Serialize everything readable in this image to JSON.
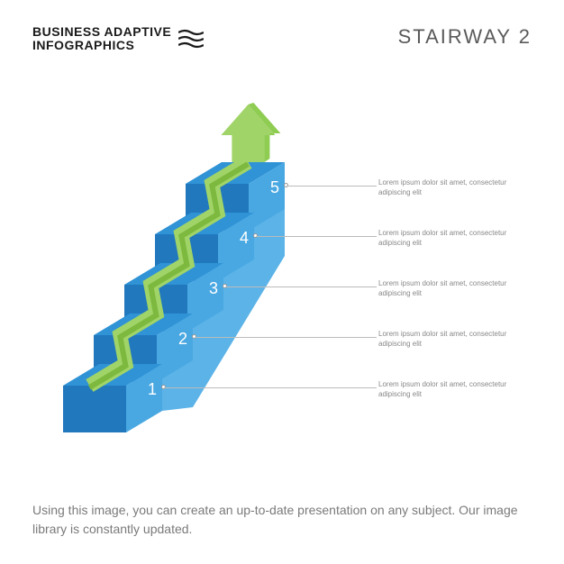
{
  "brand": {
    "line1": "BUSINESS ADAPTIVE",
    "line2": "INFOGRAPHICS"
  },
  "title": "STAIRWAY 2",
  "footer": "Using this image, you can create an up-to-date presentation on any subject. Our image library is constantly updated.",
  "diagram": {
    "type": "infographic",
    "background_color": "#ffffff",
    "step_colors": {
      "top": "#2f93d6",
      "front": "#2178bd",
      "side": "#49a8e2",
      "side_wall": "#5bb3e8",
      "number_color": "#ffffff"
    },
    "arrow_colors": {
      "top": "#a0d468",
      "front": "#7db93e",
      "side": "#8ecc52"
    },
    "steps": [
      {
        "n": "1",
        "text": "Lorem ipsum dolor sit amet, consectetur adipiscing elit"
      },
      {
        "n": "2",
        "text": "Lorem ipsum dolor sit amet, consectetur adipiscing elit"
      },
      {
        "n": "3",
        "text": "Lorem ipsum dolor sit amet, consectetur adipiscing elit"
      },
      {
        "n": "4",
        "text": "Lorem ipsum dolor sit amet, consectetur adipiscing elit"
      },
      {
        "n": "5",
        "text": "Lorem ipsum dolor sit amet, consectetur adipiscing elit"
      }
    ],
    "callout_fontsize": 8,
    "callout_color": "#888888",
    "number_fontsize": 18
  }
}
